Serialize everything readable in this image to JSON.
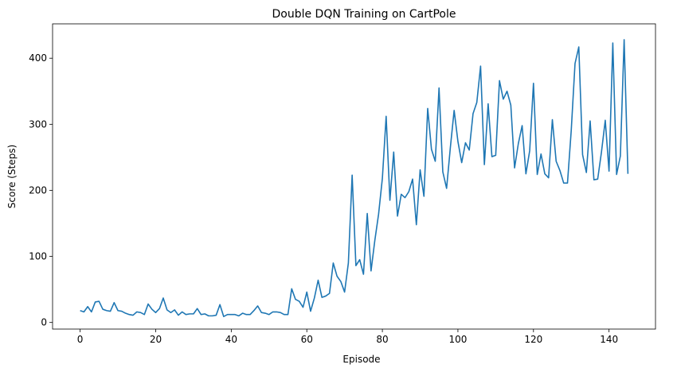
{
  "chart_data": {
    "type": "line",
    "title": "Double DQN Training on CartPole",
    "xlabel": "Episode",
    "ylabel": "Score (Steps)",
    "xlim": [
      -7.3,
      152.3
    ],
    "ylim": [
      -10,
      452
    ],
    "xticks": [
      0,
      20,
      40,
      60,
      80,
      100,
      120,
      140
    ],
    "yticks": [
      0,
      100,
      200,
      300,
      400
    ],
    "grid": false,
    "series": [
      {
        "name": "",
        "color": "#1f77b4",
        "x": [
          0,
          1,
          2,
          3,
          4,
          5,
          6,
          7,
          8,
          9,
          10,
          11,
          12,
          13,
          14,
          15,
          16,
          17,
          18,
          19,
          20,
          21,
          22,
          23,
          24,
          25,
          26,
          27,
          28,
          29,
          30,
          31,
          32,
          33,
          34,
          35,
          36,
          37,
          38,
          39,
          40,
          41,
          42,
          43,
          44,
          45,
          46,
          47,
          48,
          49,
          50,
          51,
          52,
          53,
          54,
          55,
          56,
          57,
          58,
          59,
          60,
          61,
          62,
          63,
          64,
          65,
          66,
          67,
          68,
          69,
          70,
          71,
          72,
          73,
          74,
          75,
          76,
          77,
          78,
          79,
          80,
          81,
          82,
          83,
          84,
          85,
          86,
          87,
          88,
          89,
          90,
          91,
          92,
          93,
          94,
          95,
          96,
          97,
          98,
          99,
          100,
          101,
          102,
          103,
          104,
          105,
          106,
          107,
          108,
          109,
          110,
          111,
          112,
          113,
          114,
          115,
          116,
          117,
          118,
          119,
          120,
          121,
          122,
          123,
          124,
          125,
          126,
          127,
          128,
          129,
          130,
          131,
          132,
          133,
          134,
          135,
          136,
          137,
          138,
          139,
          140,
          141,
          142,
          143,
          144,
          145
        ],
        "values": [
          18,
          16,
          24,
          16,
          31,
          32,
          20,
          18,
          17,
          30,
          18,
          17,
          14,
          12,
          11,
          16,
          15,
          12,
          28,
          20,
          15,
          21,
          37,
          19,
          15,
          19,
          11,
          16,
          12,
          13,
          13,
          21,
          12,
          13,
          10,
          10,
          11,
          27,
          9,
          12,
          12,
          12,
          10,
          14,
          12,
          12,
          18,
          25,
          15,
          14,
          12,
          16,
          16,
          15,
          12,
          12,
          51,
          35,
          32,
          23,
          46,
          17,
          37,
          64,
          38,
          40,
          44,
          90,
          70,
          62,
          46,
          90,
          223,
          86,
          95,
          73,
          165,
          78,
          124,
          164,
          218,
          312,
          185,
          258,
          161,
          194,
          189,
          198,
          217,
          148,
          231,
          191,
          324,
          262,
          244,
          355,
          228,
          203,
          265,
          321,
          274,
          242,
          272,
          261,
          316,
          333,
          388,
          239,
          331,
          251,
          253,
          366,
          338,
          350,
          329,
          234,
          271,
          298,
          225,
          260,
          362,
          224,
          255,
          225,
          219,
          307,
          244,
          230,
          211,
          211,
          291,
          392,
          417,
          254,
          227,
          305,
          216,
          217,
          258,
          306,
          229,
          423,
          224,
          252,
          428,
          225
        ]
      }
    ]
  }
}
